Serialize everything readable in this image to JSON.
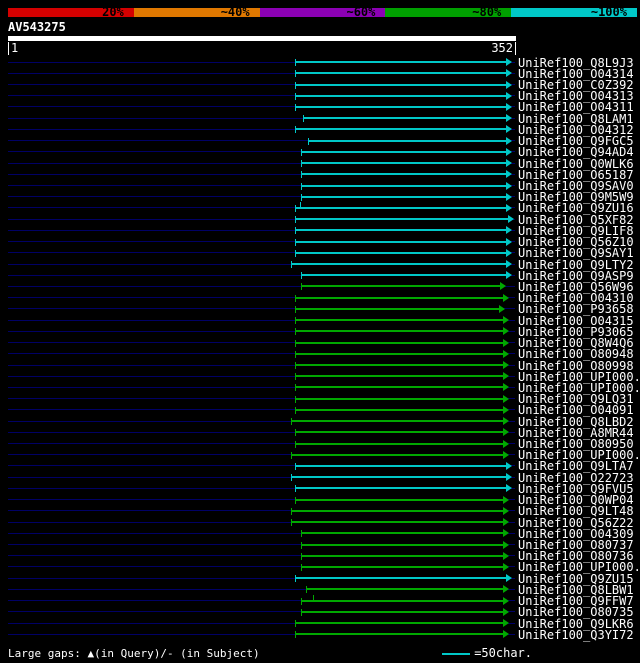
{
  "scale": {
    "segments": [
      {
        "label": "20%",
        "color": "#d40000"
      },
      {
        "label": "~40%",
        "color": "#e07800"
      },
      {
        "label": "~60%",
        "color": "#8c00b4"
      },
      {
        "label": "~80%",
        "color": "#00a000"
      },
      {
        "label": "~100%",
        "color": "#00c8c8"
      }
    ]
  },
  "query": {
    "name": "AV543275",
    "ruler_start": "1",
    "ruler_end": "352"
  },
  "chart_data": {
    "type": "bar",
    "orientation": "horizontal",
    "title": "AV543275 similarity search overview",
    "x_axis": {
      "start": 1,
      "end": 352
    },
    "bar_colors": {
      "cyan": "#00c8c8",
      "green": "#00a800"
    },
    "track_color": "#000066",
    "hits": [
      {
        "id": "UniRef100_Q8L9J3",
        "color": "cyan",
        "from": 200,
        "to": 350
      },
      {
        "id": "UniRef100_O04314",
        "color": "cyan",
        "from": 200,
        "to": 350
      },
      {
        "id": "UniRef100_C0Z392",
        "color": "cyan",
        "from": 200,
        "to": 350
      },
      {
        "id": "UniRef100_O04313",
        "color": "cyan",
        "from": 200,
        "to": 350
      },
      {
        "id": "UniRef100_O04311",
        "color": "cyan",
        "from": 200,
        "to": 350
      },
      {
        "id": "UniRef100_Q8LAM1",
        "color": "cyan",
        "from": 205,
        "to": 350
      },
      {
        "id": "UniRef100_O04312",
        "color": "cyan",
        "from": 200,
        "to": 350
      },
      {
        "id": "UniRef100_Q9FGC5",
        "color": "cyan",
        "from": 209,
        "to": 350
      },
      {
        "id": "UniRef100_Q94AD4",
        "color": "cyan",
        "from": 204,
        "to": 350
      },
      {
        "id": "UniRef100_Q0WLK6",
        "color": "cyan",
        "from": 204,
        "to": 350
      },
      {
        "id": "UniRef100_O65187",
        "color": "cyan",
        "from": 204,
        "to": 350
      },
      {
        "id": "UniRef100_Q9SAV0",
        "color": "cyan",
        "from": 204,
        "to": 350
      },
      {
        "id": "UniRef100_Q9M5W9",
        "color": "cyan",
        "from": 204,
        "to": 350
      },
      {
        "id": "UniRef100_Q9ZU16",
        "color": "cyan",
        "from": 200,
        "to": 350,
        "ticks": [
          203
        ]
      },
      {
        "id": "UniRef100_Q5XF82",
        "color": "cyan",
        "from": 200,
        "to": 351
      },
      {
        "id": "UniRef100_Q9LIF8",
        "color": "cyan",
        "from": 200,
        "to": 350
      },
      {
        "id": "UniRef100_Q56Z10",
        "color": "cyan",
        "from": 200,
        "to": 350
      },
      {
        "id": "UniRef100_Q9SAY1",
        "color": "cyan",
        "from": 200,
        "to": 350
      },
      {
        "id": "UniRef100_Q9LTY2",
        "color": "cyan",
        "from": 197,
        "to": 350
      },
      {
        "id": "UniRef100_Q9ASP9",
        "color": "cyan",
        "from": 204,
        "to": 350
      },
      {
        "id": "UniRef100_Q56W96",
        "color": "green",
        "from": 204,
        "to": 346
      },
      {
        "id": "UniRef100_O04310",
        "color": "green",
        "from": 200,
        "to": 348
      },
      {
        "id": "UniRef100_P93658",
        "color": "green",
        "from": 200,
        "to": 345
      },
      {
        "id": "UniRef100_O04315",
        "color": "green",
        "from": 200,
        "to": 348
      },
      {
        "id": "UniRef100_P93065",
        "color": "green",
        "from": 200,
        "to": 348
      },
      {
        "id": "UniRef100_Q8W4Q6",
        "color": "green",
        "from": 200,
        "to": 348
      },
      {
        "id": "UniRef100_O80948",
        "color": "green",
        "from": 200,
        "to": 348
      },
      {
        "id": "UniRef100_O80998",
        "color": "green",
        "from": 200,
        "to": 348
      },
      {
        "id": "UniRef100_UPI000...",
        "color": "green",
        "from": 200,
        "to": 348
      },
      {
        "id": "UniRef100_UPI000...",
        "color": "green",
        "from": 200,
        "to": 348
      },
      {
        "id": "UniRef100_Q9LQ31",
        "color": "green",
        "from": 200,
        "to": 348
      },
      {
        "id": "UniRef100_O04091",
        "color": "green",
        "from": 200,
        "to": 348
      },
      {
        "id": "UniRef100_Q8LBD2",
        "color": "green",
        "from": 197,
        "to": 348
      },
      {
        "id": "UniRef100_A8MR44",
        "color": "green",
        "from": 200,
        "to": 348
      },
      {
        "id": "UniRef100_O80950",
        "color": "green",
        "from": 200,
        "to": 348
      },
      {
        "id": "UniRef100_UPI000...",
        "color": "green",
        "from": 197,
        "to": 348
      },
      {
        "id": "UniRef100_Q9LTA7",
        "color": "cyan",
        "from": 200,
        "to": 350
      },
      {
        "id": "UniRef100_O22723",
        "color": "cyan",
        "from": 197,
        "to": 350
      },
      {
        "id": "UniRef100_Q9FVU5",
        "color": "cyan",
        "from": 200,
        "to": 350
      },
      {
        "id": "UniRef100_Q0WP04",
        "color": "green",
        "from": 200,
        "to": 348
      },
      {
        "id": "UniRef100_Q9LT48",
        "color": "green",
        "from": 197,
        "to": 348
      },
      {
        "id": "UniRef100_Q56Z22",
        "color": "green",
        "from": 197,
        "to": 348
      },
      {
        "id": "UniRef100_O04309",
        "color": "green",
        "from": 204,
        "to": 348
      },
      {
        "id": "UniRef100_O80737",
        "color": "green",
        "from": 204,
        "to": 348
      },
      {
        "id": "UniRef100_O80736",
        "color": "green",
        "from": 204,
        "to": 348
      },
      {
        "id": "UniRef100_UPI000...",
        "color": "green",
        "from": 204,
        "to": 348
      },
      {
        "id": "UniRef100_Q9ZU15",
        "color": "cyan",
        "from": 200,
        "to": 350
      },
      {
        "id": "UniRef100_Q8LBW1",
        "color": "green",
        "from": 207,
        "to": 348
      },
      {
        "id": "UniRef100_Q9FFW7",
        "color": "green",
        "from": 204,
        "to": 348,
        "ticks": [
          212
        ]
      },
      {
        "id": "UniRef100_O80735",
        "color": "green",
        "from": 204,
        "to": 348
      },
      {
        "id": "UniRef100_Q9LKR6",
        "color": "green",
        "from": 200,
        "to": 348
      },
      {
        "id": "UniRef100_Q3YI72",
        "color": "green",
        "from": 200,
        "to": 348
      }
    ]
  },
  "footer": {
    "gaps_label": "Large gaps: ▲(in Query)/- (in Subject)",
    "legend_label": "=50char."
  }
}
